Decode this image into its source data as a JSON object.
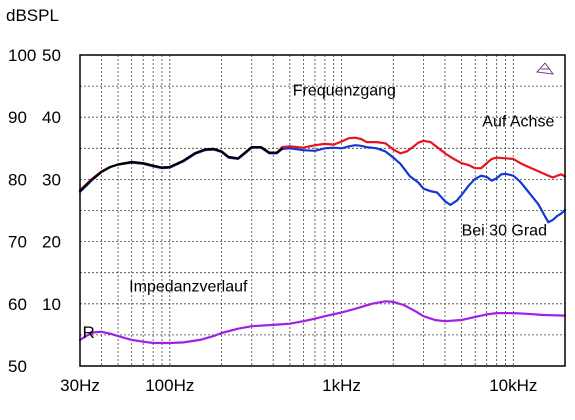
{
  "chart_data": {
    "type": "line",
    "unit_label": "dBSPL",
    "x_scale": "log",
    "xlim": [
      30,
      20000
    ],
    "x_ticks": [
      {
        "value": 30,
        "label": "30Hz"
      },
      {
        "value": 100,
        "label": "100Hz"
      },
      {
        "value": 1000,
        "label": "1kHz"
      },
      {
        "value": 10000,
        "label": "10kHz"
      }
    ],
    "ylim": [
      50,
      100
    ],
    "y_ticks": [
      {
        "value": 100,
        "left": "100",
        "right": "50"
      },
      {
        "value": 90,
        "left": "90",
        "right": "40"
      },
      {
        "value": 80,
        "left": "80",
        "right": "30"
      },
      {
        "value": 70,
        "left": "70",
        "right": "20"
      },
      {
        "value": 60,
        "left": "60",
        "right": "10"
      },
      {
        "value": 50,
        "left": "50",
        "right": ""
      }
    ],
    "grid": true,
    "annotations": [
      {
        "text": "Frequenzgang",
        "x": 520,
        "y": 93.5
      },
      {
        "text": "Auf Achse",
        "x": 6600,
        "y": 88.5
      },
      {
        "text": "Bei 30 Grad",
        "x": 5000,
        "y": 71.0
      },
      {
        "text": "Impedanzverlauf",
        "x": 58,
        "y": 62.0
      },
      {
        "text": "R",
        "x": 31,
        "y": 54.5
      }
    ],
    "series": [
      {
        "name": "Auf Achse",
        "color": "#e8141c",
        "points": [
          [
            30,
            78.3
          ],
          [
            35,
            80.0
          ],
          [
            40,
            81.3
          ],
          [
            45,
            82.0
          ],
          [
            50,
            82.4
          ],
          [
            60,
            82.8
          ],
          [
            70,
            82.6
          ],
          [
            80,
            82.2
          ],
          [
            90,
            81.9
          ],
          [
            100,
            82.0
          ],
          [
            120,
            83.0
          ],
          [
            140,
            84.2
          ],
          [
            160,
            84.8
          ],
          [
            180,
            84.9
          ],
          [
            200,
            84.5
          ],
          [
            220,
            83.6
          ],
          [
            250,
            83.4
          ],
          [
            280,
            84.5
          ],
          [
            300,
            85.2
          ],
          [
            340,
            85.2
          ],
          [
            380,
            84.3
          ],
          [
            420,
            84.3
          ],
          [
            450,
            85.2
          ],
          [
            500,
            85.3
          ],
          [
            600,
            85.1
          ],
          [
            700,
            85.5
          ],
          [
            800,
            85.7
          ],
          [
            900,
            85.6
          ],
          [
            1000,
            86.1
          ],
          [
            1100,
            86.6
          ],
          [
            1200,
            86.7
          ],
          [
            1300,
            86.5
          ],
          [
            1400,
            86.0
          ],
          [
            1600,
            86.0
          ],
          [
            1800,
            85.8
          ],
          [
            2000,
            84.8
          ],
          [
            2200,
            84.2
          ],
          [
            2400,
            84.5
          ],
          [
            2600,
            85.2
          ],
          [
            2800,
            85.9
          ],
          [
            3000,
            86.2
          ],
          [
            3300,
            86.0
          ],
          [
            3600,
            85.2
          ],
          [
            4000,
            84.2
          ],
          [
            4500,
            83.3
          ],
          [
            5000,
            82.6
          ],
          [
            5500,
            82.3
          ],
          [
            6000,
            81.8
          ],
          [
            6500,
            81.8
          ],
          [
            7000,
            82.6
          ],
          [
            7500,
            83.3
          ],
          [
            8000,
            83.5
          ],
          [
            9000,
            83.4
          ],
          [
            10000,
            83.3
          ],
          [
            11000,
            82.6
          ],
          [
            12000,
            82.1
          ],
          [
            14000,
            81.3
          ],
          [
            16000,
            80.6
          ],
          [
            17000,
            80.3
          ],
          [
            18000,
            80.6
          ],
          [
            19000,
            80.8
          ],
          [
            20000,
            80.5
          ]
        ]
      },
      {
        "name": "Bei 30 Grad",
        "color": "#1438d8",
        "points": [
          [
            30,
            78.0
          ],
          [
            35,
            79.8
          ],
          [
            40,
            81.2
          ],
          [
            45,
            82.0
          ],
          [
            50,
            82.4
          ],
          [
            60,
            82.7
          ],
          [
            70,
            82.5
          ],
          [
            80,
            82.1
          ],
          [
            90,
            81.8
          ],
          [
            100,
            81.9
          ],
          [
            120,
            82.9
          ],
          [
            140,
            84.1
          ],
          [
            160,
            84.7
          ],
          [
            180,
            84.8
          ],
          [
            200,
            84.4
          ],
          [
            220,
            83.5
          ],
          [
            250,
            83.3
          ],
          [
            280,
            84.4
          ],
          [
            300,
            85.1
          ],
          [
            340,
            85.1
          ],
          [
            380,
            84.2
          ],
          [
            420,
            84.2
          ],
          [
            450,
            84.9
          ],
          [
            500,
            85.0
          ],
          [
            600,
            84.7
          ],
          [
            700,
            84.6
          ],
          [
            800,
            85.0
          ],
          [
            900,
            85.1
          ],
          [
            1000,
            85.0
          ],
          [
            1100,
            85.3
          ],
          [
            1200,
            85.5
          ],
          [
            1300,
            85.4
          ],
          [
            1400,
            85.2
          ],
          [
            1600,
            85.0
          ],
          [
            1800,
            84.5
          ],
          [
            2000,
            83.5
          ],
          [
            2200,
            82.5
          ],
          [
            2500,
            80.5
          ],
          [
            2800,
            79.5
          ],
          [
            3000,
            78.5
          ],
          [
            3300,
            78.1
          ],
          [
            3600,
            77.9
          ],
          [
            4000,
            76.5
          ],
          [
            4300,
            75.9
          ],
          [
            4700,
            76.6
          ],
          [
            5000,
            77.5
          ],
          [
            5500,
            79.0
          ],
          [
            6000,
            80.1
          ],
          [
            6500,
            80.6
          ],
          [
            7000,
            80.4
          ],
          [
            7500,
            79.8
          ],
          [
            8000,
            80.2
          ],
          [
            8500,
            80.8
          ],
          [
            9000,
            80.9
          ],
          [
            10000,
            80.6
          ],
          [
            11000,
            79.6
          ],
          [
            12000,
            78.3
          ],
          [
            13000,
            77.1
          ],
          [
            14000,
            76.0
          ],
          [
            15000,
            74.5
          ],
          [
            16000,
            73.1
          ],
          [
            17000,
            73.5
          ],
          [
            18000,
            74.1
          ],
          [
            19000,
            74.5
          ],
          [
            20000,
            75.1
          ]
        ]
      },
      {
        "name": "Impedanzverlauf",
        "color": "#a020e8",
        "points": [
          [
            30,
            54.2
          ],
          [
            33,
            54.9
          ],
          [
            36,
            55.4
          ],
          [
            40,
            55.5
          ],
          [
            45,
            55.2
          ],
          [
            50,
            54.8
          ],
          [
            60,
            54.2
          ],
          [
            70,
            53.9
          ],
          [
            80,
            53.7
          ],
          [
            90,
            53.7
          ],
          [
            100,
            53.7
          ],
          [
            120,
            53.8
          ],
          [
            150,
            54.2
          ],
          [
            180,
            54.8
          ],
          [
            200,
            55.3
          ],
          [
            250,
            56.0
          ],
          [
            300,
            56.4
          ],
          [
            400,
            56.6
          ],
          [
            500,
            56.8
          ],
          [
            600,
            57.2
          ],
          [
            700,
            57.6
          ],
          [
            800,
            58.0
          ],
          [
            1000,
            58.6
          ],
          [
            1200,
            59.2
          ],
          [
            1500,
            60.0
          ],
          [
            1800,
            60.4
          ],
          [
            2000,
            60.3
          ],
          [
            2300,
            59.8
          ],
          [
            2700,
            58.8
          ],
          [
            3000,
            58.0
          ],
          [
            3500,
            57.4
          ],
          [
            4000,
            57.2
          ],
          [
            5000,
            57.4
          ],
          [
            6000,
            57.9
          ],
          [
            7000,
            58.3
          ],
          [
            8000,
            58.5
          ],
          [
            10000,
            58.5
          ],
          [
            12000,
            58.4
          ],
          [
            15000,
            58.2
          ],
          [
            20000,
            58.1
          ]
        ]
      },
      {
        "name": "",
        "color": "#000000",
        "points": [
          [
            30,
            78.1
          ],
          [
            35,
            79.9
          ],
          [
            40,
            81.2
          ],
          [
            45,
            82.0
          ],
          [
            50,
            82.4
          ],
          [
            60,
            82.8
          ],
          [
            70,
            82.6
          ],
          [
            80,
            82.2
          ],
          [
            90,
            81.9
          ],
          [
            100,
            82.0
          ],
          [
            120,
            83.0
          ],
          [
            140,
            84.2
          ],
          [
            160,
            84.8
          ],
          [
            180,
            84.9
          ],
          [
            200,
            84.5
          ],
          [
            220,
            83.6
          ],
          [
            250,
            83.4
          ],
          [
            280,
            84.5
          ],
          [
            300,
            85.2
          ],
          [
            340,
            85.2
          ],
          [
            380,
            84.3
          ],
          [
            420,
            84.3
          ],
          [
            450,
            84.9
          ]
        ]
      }
    ]
  }
}
